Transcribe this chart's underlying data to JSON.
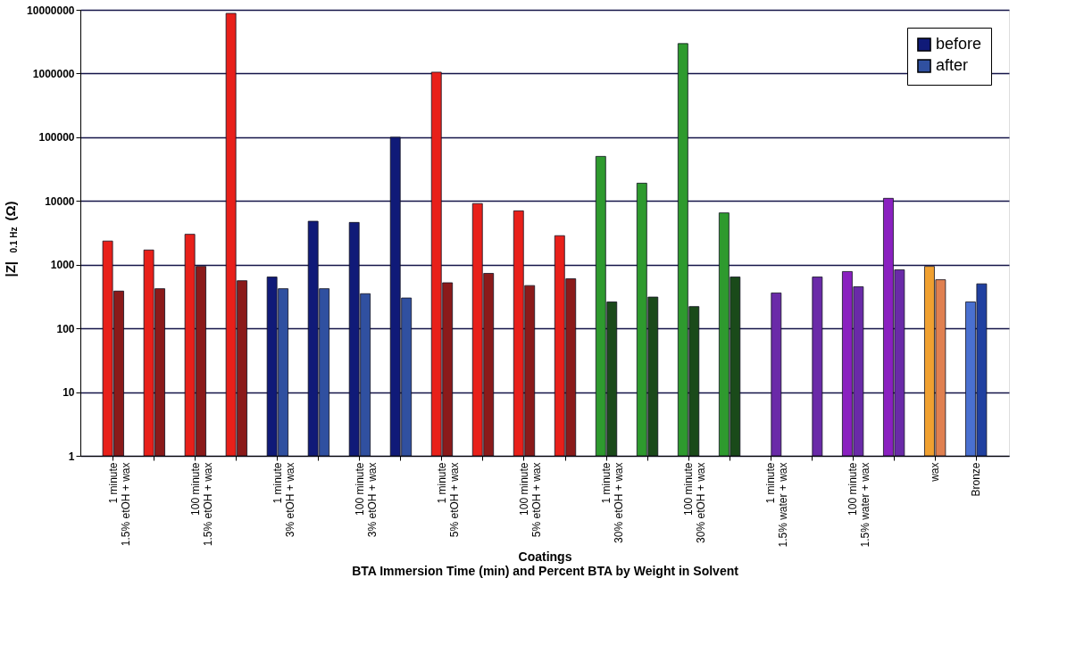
{
  "chart_data": {
    "type": "bar",
    "xlabel": "Coatings",
    "ylabel": "|Z|$_{0.1 Hz}$ (Ω)",
    "annotations": [
      "BTA Immersion Time (min) and Percent BTA by Weight in Solvent"
    ],
    "categories": [
      "1 minute\n1.5% etOH + wax",
      null,
      "100 minute\n1.5% etOH + wax",
      null,
      "1 minute\n3% etOH + wax",
      null,
      "100 minute\n3% etOH + wax",
      null,
      "1 minute\n5% etOH + wax",
      null,
      "100 minute\n5% etOH + wax",
      null,
      "1 minute\n30% etOH + wax",
      null,
      "100 minute\n30% etOH + wax",
      null,
      "1 minute\n1.5% water + wax",
      null,
      "100 minute\n1.5% water + wax",
      null,
      "wax",
      "Bronze"
    ],
    "series": [
      {
        "name": "before",
        "color": "#101a78",
        "values": [
          2350,
          1700,
          3000,
          8800000,
          640,
          4800,
          4600,
          100000,
          1050000,
          9100,
          7000,
          2850,
          50000,
          19000,
          2950000,
          6500,
          null,
          null,
          780,
          11000,
          940,
          260
        ],
        "colors": [
          "#e8201a",
          "#e8201a",
          "#e8201a",
          "#e8201a",
          "#101a78",
          "#101a78",
          "#101a78",
          "#101a78",
          "#e8201a",
          "#e8201a",
          "#e8201a",
          "#e8201a",
          "#2e9a2e",
          "#2e9a2e",
          "#2e9a2e",
          "#2e9a2e",
          "#8a20c0",
          "#8a20c0",
          "#8a20c0",
          "#8a20c0",
          "#f0a030",
          "#4a70d0"
        ]
      },
      {
        "name": "after",
        "color": "#3050a0",
        "values": [
          385,
          420,
          940,
          560,
          420,
          420,
          350,
          300,
          520,
          730,
          470,
          600,
          260,
          310,
          220,
          640,
          360,
          640,
          450,
          830,
          580,
          500
        ],
        "colors": [
          "#8b1a1a",
          "#8b1a1a",
          "#8b1a1a",
          "#8b1a1a",
          "#3050a0",
          "#3050a0",
          "#3050a0",
          "#3050a0",
          "#8b1a1a",
          "#8b1a1a",
          "#8b1a1a",
          "#8b1a1a",
          "#1a4a1a",
          "#1a4a1a",
          "#1a4a1a",
          "#1a4a1a",
          "#6a2aa8",
          "#6a2aa8",
          "#6a2aa8",
          "#6a2aa8",
          "#e08050",
          "#2040a0"
        ]
      }
    ],
    "log": true,
    "ylim": [
      1,
      10000000
    ],
    "yticks": [
      1,
      10,
      100,
      1000,
      10000,
      100000,
      1000000,
      10000000
    ],
    "grid": "y",
    "legend": "top right"
  }
}
